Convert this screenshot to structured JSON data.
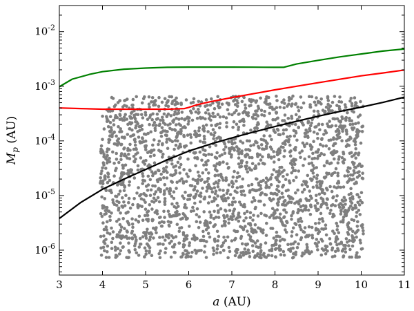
{
  "chart_data": {
    "type": "scatter",
    "title": "",
    "xlabel": {
      "symbol": "a",
      "unit": " (AU)"
    },
    "ylabel": {
      "symbol": "M",
      "subscript": "p",
      "unit": " (AU)"
    },
    "xlim": [
      3,
      11
    ],
    "ylim": [
      3.5e-07,
      0.03
    ],
    "yscale": "log",
    "grid": false,
    "legend": false,
    "x_ticks": [
      3,
      4,
      5,
      6,
      7,
      8,
      9,
      10,
      11
    ],
    "y_ticks": [
      {
        "value": 1e-06,
        "base": "10",
        "exp": "-6"
      },
      {
        "value": 1e-05,
        "base": "10",
        "exp": "-5"
      },
      {
        "value": 0.0001,
        "base": "10",
        "exp": "-4"
      },
      {
        "value": 0.001,
        "base": "10",
        "exp": "-3"
      },
      {
        "value": 0.01,
        "base": "10",
        "exp": "-2"
      }
    ],
    "series": [
      {
        "kind": "line",
        "color": "#008000",
        "x": [
          3.0,
          3.3,
          3.7,
          4.0,
          4.5,
          5.0,
          5.5,
          6.0,
          6.5,
          7.0,
          7.5,
          8.0,
          8.2,
          8.5,
          9.0,
          9.5,
          10.0,
          10.5,
          11.0
        ],
        "y": [
          0.00098,
          0.00135,
          0.00165,
          0.00185,
          0.00205,
          0.00215,
          0.00222,
          0.00224,
          0.00224,
          0.00224,
          0.00223,
          0.00222,
          0.00222,
          0.00255,
          0.00298,
          0.00345,
          0.0039,
          0.0044,
          0.0048
        ]
      },
      {
        "kind": "line",
        "color": "#ff0000",
        "x": [
          3.0,
          3.5,
          4.0,
          4.5,
          5.0,
          5.5,
          5.9,
          6.0,
          6.2,
          6.5,
          7.0,
          7.5,
          8.0,
          8.5,
          9.0,
          9.5,
          10.0,
          10.5,
          11.0
        ],
        "y": [
          0.0004,
          0.00039,
          0.00038,
          0.00038,
          0.00038,
          0.00038,
          0.00039,
          0.00041,
          0.00046,
          0.00052,
          0.00062,
          0.00073,
          0.00086,
          0.001,
          0.00116,
          0.00134,
          0.00155,
          0.00175,
          0.00198
        ]
      },
      {
        "kind": "line",
        "color": "#000000",
        "x": [
          3.0,
          3.5,
          4.0,
          4.5,
          5.0,
          5.5,
          6.0,
          6.5,
          7.0,
          7.5,
          8.0,
          8.5,
          9.0,
          9.5,
          10.0,
          10.5,
          11.0
        ],
        "y": [
          3.8e-06,
          7.5e-06,
          1.3e-05,
          2e-05,
          3e-05,
          4.5e-05,
          6.5e-05,
          8.7e-05,
          0.000113,
          0.000145,
          0.000183,
          0.000228,
          0.000282,
          0.000345,
          0.000415,
          0.000505,
          0.00063
        ]
      },
      {
        "kind": "scatter",
        "color": "#7f7f7f",
        "count": 2400,
        "x_range": [
          3.95,
          10.05
        ],
        "y_range": [
          7.2e-07,
          0.00066
        ],
        "distribution": "uniform in x, log-uniform in y"
      }
    ]
  }
}
